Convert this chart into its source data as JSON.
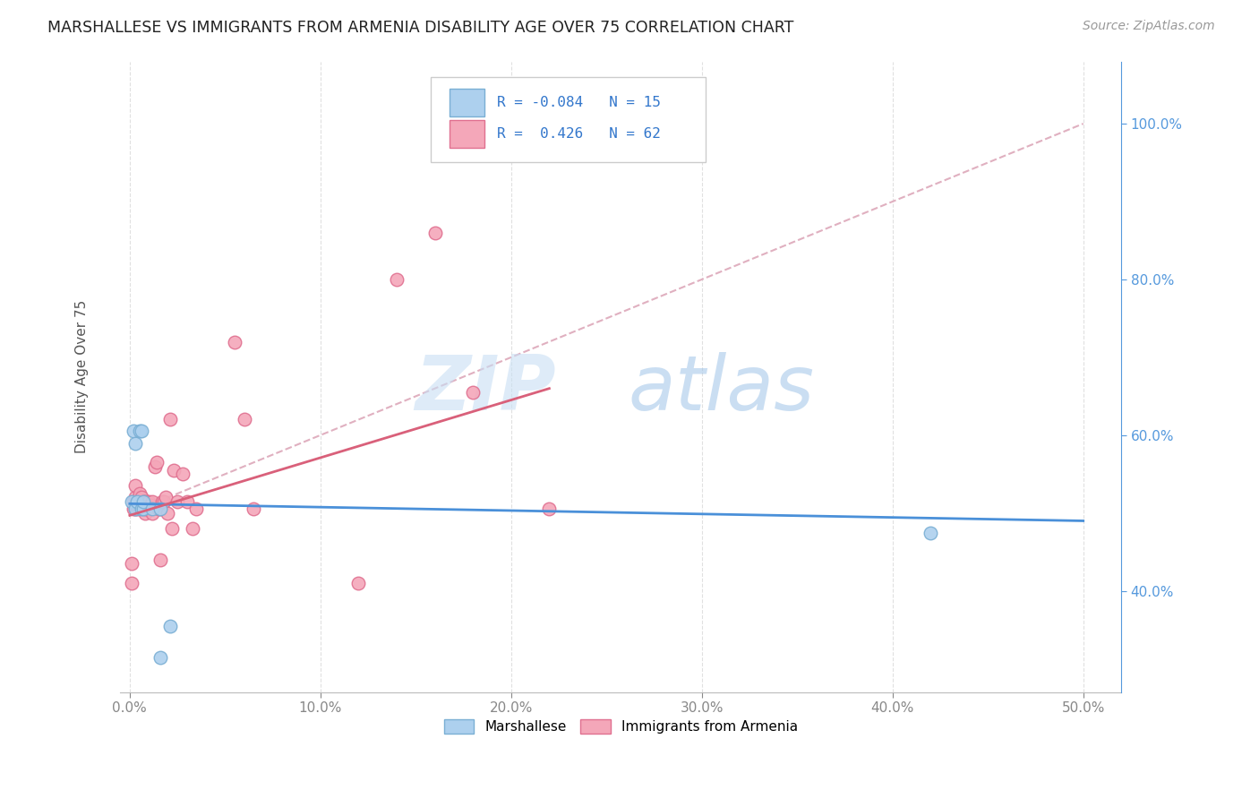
{
  "title": "MARSHALLESE VS IMMIGRANTS FROM ARMENIA DISABILITY AGE OVER 75 CORRELATION CHART",
  "source": "Source: ZipAtlas.com",
  "xlabel_ticks": [
    "0.0%",
    "10.0%",
    "20.0%",
    "30.0%",
    "40.0%",
    "50.0%"
  ],
  "xlabel_vals": [
    0.0,
    0.1,
    0.2,
    0.3,
    0.4,
    0.5
  ],
  "ylabel_ticks": [
    "40.0%",
    "60.0%",
    "80.0%",
    "100.0%"
  ],
  "ylabel_vals": [
    0.4,
    0.6,
    0.8,
    1.0
  ],
  "marshallese_color": "#add0ee",
  "armenia_color": "#f4a7b9",
  "marshallese_edge": "#7aafd4",
  "armenia_edge": "#e07090",
  "blue_line_color": "#4a90d9",
  "pink_line_color": "#d9607a",
  "ref_line_color": "#e0b0c0",
  "ref_line_style": "--",
  "legend_R1": "-0.084",
  "legend_N1": "15",
  "legend_R2": "0.426",
  "legend_N2": "62",
  "legend_label1": "Marshallese",
  "legend_label2": "Immigrants from Armenia",
  "watermark_zip": "ZIP",
  "watermark_atlas": "atlas",
  "xlim": [
    -0.005,
    0.52
  ],
  "ylim": [
    0.27,
    1.08
  ],
  "figsize": [
    14.06,
    8.92
  ],
  "dpi": 100,
  "marshallese_x": [
    0.001,
    0.002,
    0.003,
    0.003,
    0.004,
    0.005,
    0.006,
    0.006,
    0.007,
    0.007,
    0.012,
    0.016,
    0.42,
    0.016,
    0.021
  ],
  "marshallese_y": [
    0.515,
    0.605,
    0.505,
    0.59,
    0.515,
    0.605,
    0.505,
    0.605,
    0.505,
    0.515,
    0.505,
    0.505,
    0.475,
    0.315,
    0.355
  ],
  "armenia_x": [
    0.001,
    0.001,
    0.002,
    0.002,
    0.003,
    0.003,
    0.003,
    0.003,
    0.004,
    0.004,
    0.004,
    0.005,
    0.005,
    0.005,
    0.005,
    0.005,
    0.006,
    0.006,
    0.006,
    0.006,
    0.007,
    0.007,
    0.007,
    0.008,
    0.008,
    0.008,
    0.008,
    0.009,
    0.009,
    0.009,
    0.01,
    0.01,
    0.01,
    0.011,
    0.011,
    0.012,
    0.012,
    0.013,
    0.014,
    0.015,
    0.016,
    0.016,
    0.017,
    0.018,
    0.019,
    0.02,
    0.021,
    0.022,
    0.023,
    0.025,
    0.028,
    0.03,
    0.033,
    0.035,
    0.055,
    0.06,
    0.065,
    0.12,
    0.14,
    0.16,
    0.18,
    0.22
  ],
  "armenia_y": [
    0.41,
    0.435,
    0.505,
    0.515,
    0.505,
    0.51,
    0.52,
    0.535,
    0.505,
    0.51,
    0.515,
    0.505,
    0.51,
    0.515,
    0.52,
    0.525,
    0.505,
    0.51,
    0.515,
    0.52,
    0.505,
    0.51,
    0.515,
    0.5,
    0.505,
    0.51,
    0.515,
    0.505,
    0.51,
    0.515,
    0.505,
    0.51,
    0.515,
    0.505,
    0.51,
    0.5,
    0.515,
    0.56,
    0.565,
    0.505,
    0.44,
    0.505,
    0.515,
    0.515,
    0.52,
    0.5,
    0.62,
    0.48,
    0.555,
    0.515,
    0.55,
    0.515,
    0.48,
    0.505,
    0.72,
    0.62,
    0.505,
    0.41,
    0.8,
    0.86,
    0.655,
    0.505
  ],
  "blue_line_x0": 0.0,
  "blue_line_x1": 0.5,
  "blue_line_y0": 0.512,
  "blue_line_y1": 0.49,
  "pink_line_x0": 0.0,
  "pink_line_x1": 0.22,
  "pink_line_y0": 0.497,
  "pink_line_y1": 0.66,
  "ref_line_x0": 0.0,
  "ref_line_x1": 0.5,
  "ref_line_y0": 0.5,
  "ref_line_y1": 1.0
}
